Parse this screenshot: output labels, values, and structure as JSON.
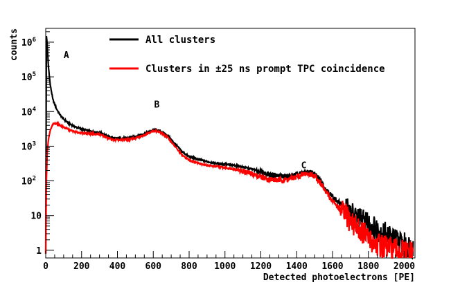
{
  "chart_data": {
    "type": "line",
    "title": "",
    "xlabel": "Detected photoelectrons [PE]",
    "ylabel": "counts",
    "xlim": [
      0,
      2060
    ],
    "ylim": [
      0.6,
      2500000
    ],
    "yscale": "log",
    "grid": false,
    "legend_position": "top-center",
    "x_ticks": [
      0,
      200,
      400,
      600,
      800,
      1000,
      1200,
      1400,
      1600,
      1800,
      2000
    ],
    "x_tick_labels": [
      "0",
      "200",
      "400",
      "600",
      "800",
      "1000",
      "1200",
      "1400",
      "1600",
      "1800",
      "2000"
    ],
    "y_ticks": [
      {
        "value": 1,
        "base": "1",
        "exp": ""
      },
      {
        "value": 10,
        "base": "10",
        "exp": ""
      },
      {
        "value": 100,
        "base": "10",
        "exp": "2"
      },
      {
        "value": 1000,
        "base": "10",
        "exp": "3"
      },
      {
        "value": 10000,
        "base": "10",
        "exp": "4"
      },
      {
        "value": 100000,
        "base": "10",
        "exp": "5"
      },
      {
        "value": 1000000,
        "base": "10",
        "exp": "6"
      }
    ],
    "series": [
      {
        "name": "All clusters",
        "color": "#000000",
        "x": [
          0,
          4,
          8,
          15,
          25,
          40,
          60,
          80,
          100,
          130,
          160,
          200,
          250,
          300,
          340,
          380,
          420,
          460,
          500,
          540,
          580,
          610,
          640,
          680,
          720,
          760,
          800,
          850,
          900,
          950,
          1000,
          1050,
          1100,
          1150,
          1200,
          1250,
          1300,
          1350,
          1400,
          1450,
          1490,
          1530,
          1560,
          1600,
          1650,
          1700,
          1750,
          1800,
          1850,
          1900,
          1950,
          2000,
          2050
        ],
        "y": [
          0.8,
          1500000,
          900000,
          200000,
          60000,
          22000,
          12000,
          8000,
          6000,
          4500,
          3700,
          3100,
          2700,
          2500,
          2000,
          1700,
          1700,
          1750,
          1900,
          2200,
          2700,
          3000,
          2700,
          2000,
          1200,
          700,
          500,
          420,
          360,
          320,
          300,
          280,
          250,
          220,
          180,
          150,
          140,
          130,
          150,
          180,
          170,
          110,
          60,
          35,
          20,
          12,
          8,
          6,
          4,
          3,
          2,
          1.5,
          1.2
        ]
      },
      {
        "name": "Clusters in ±25 ns prompt TPC coincidence",
        "color": "#ff0000",
        "x": [
          0,
          4,
          8,
          15,
          25,
          40,
          60,
          80,
          100,
          130,
          160,
          200,
          250,
          300,
          340,
          380,
          420,
          460,
          500,
          540,
          580,
          610,
          640,
          680,
          720,
          760,
          800,
          850,
          900,
          950,
          1000,
          1050,
          1100,
          1150,
          1200,
          1250,
          1300,
          1350,
          1400,
          1450,
          1490,
          1530,
          1560,
          1600,
          1650,
          1700,
          1750,
          1780,
          1800,
          1850,
          1900,
          1950,
          2000,
          2050
        ],
        "y": [
          0.8,
          100,
          600,
          1500,
          2800,
          4300,
          4600,
          4000,
          3500,
          3000,
          2600,
          2400,
          2300,
          2200,
          1800,
          1500,
          1500,
          1550,
          1700,
          2000,
          2500,
          2800,
          2500,
          1800,
          1000,
          550,
          400,
          330,
          280,
          260,
          240,
          220,
          190,
          160,
          130,
          110,
          105,
          110,
          130,
          160,
          150,
          95,
          50,
          26,
          14,
          7,
          4,
          3,
          2,
          1.5,
          1.2,
          1,
          0.9,
          0.8
        ]
      }
    ],
    "annotations": [
      {
        "text": "A",
        "x": 115,
        "y": 350000
      },
      {
        "text": "B",
        "x": 620,
        "y": 13000
      },
      {
        "text": "C",
        "x": 1440,
        "y": 230
      }
    ]
  }
}
